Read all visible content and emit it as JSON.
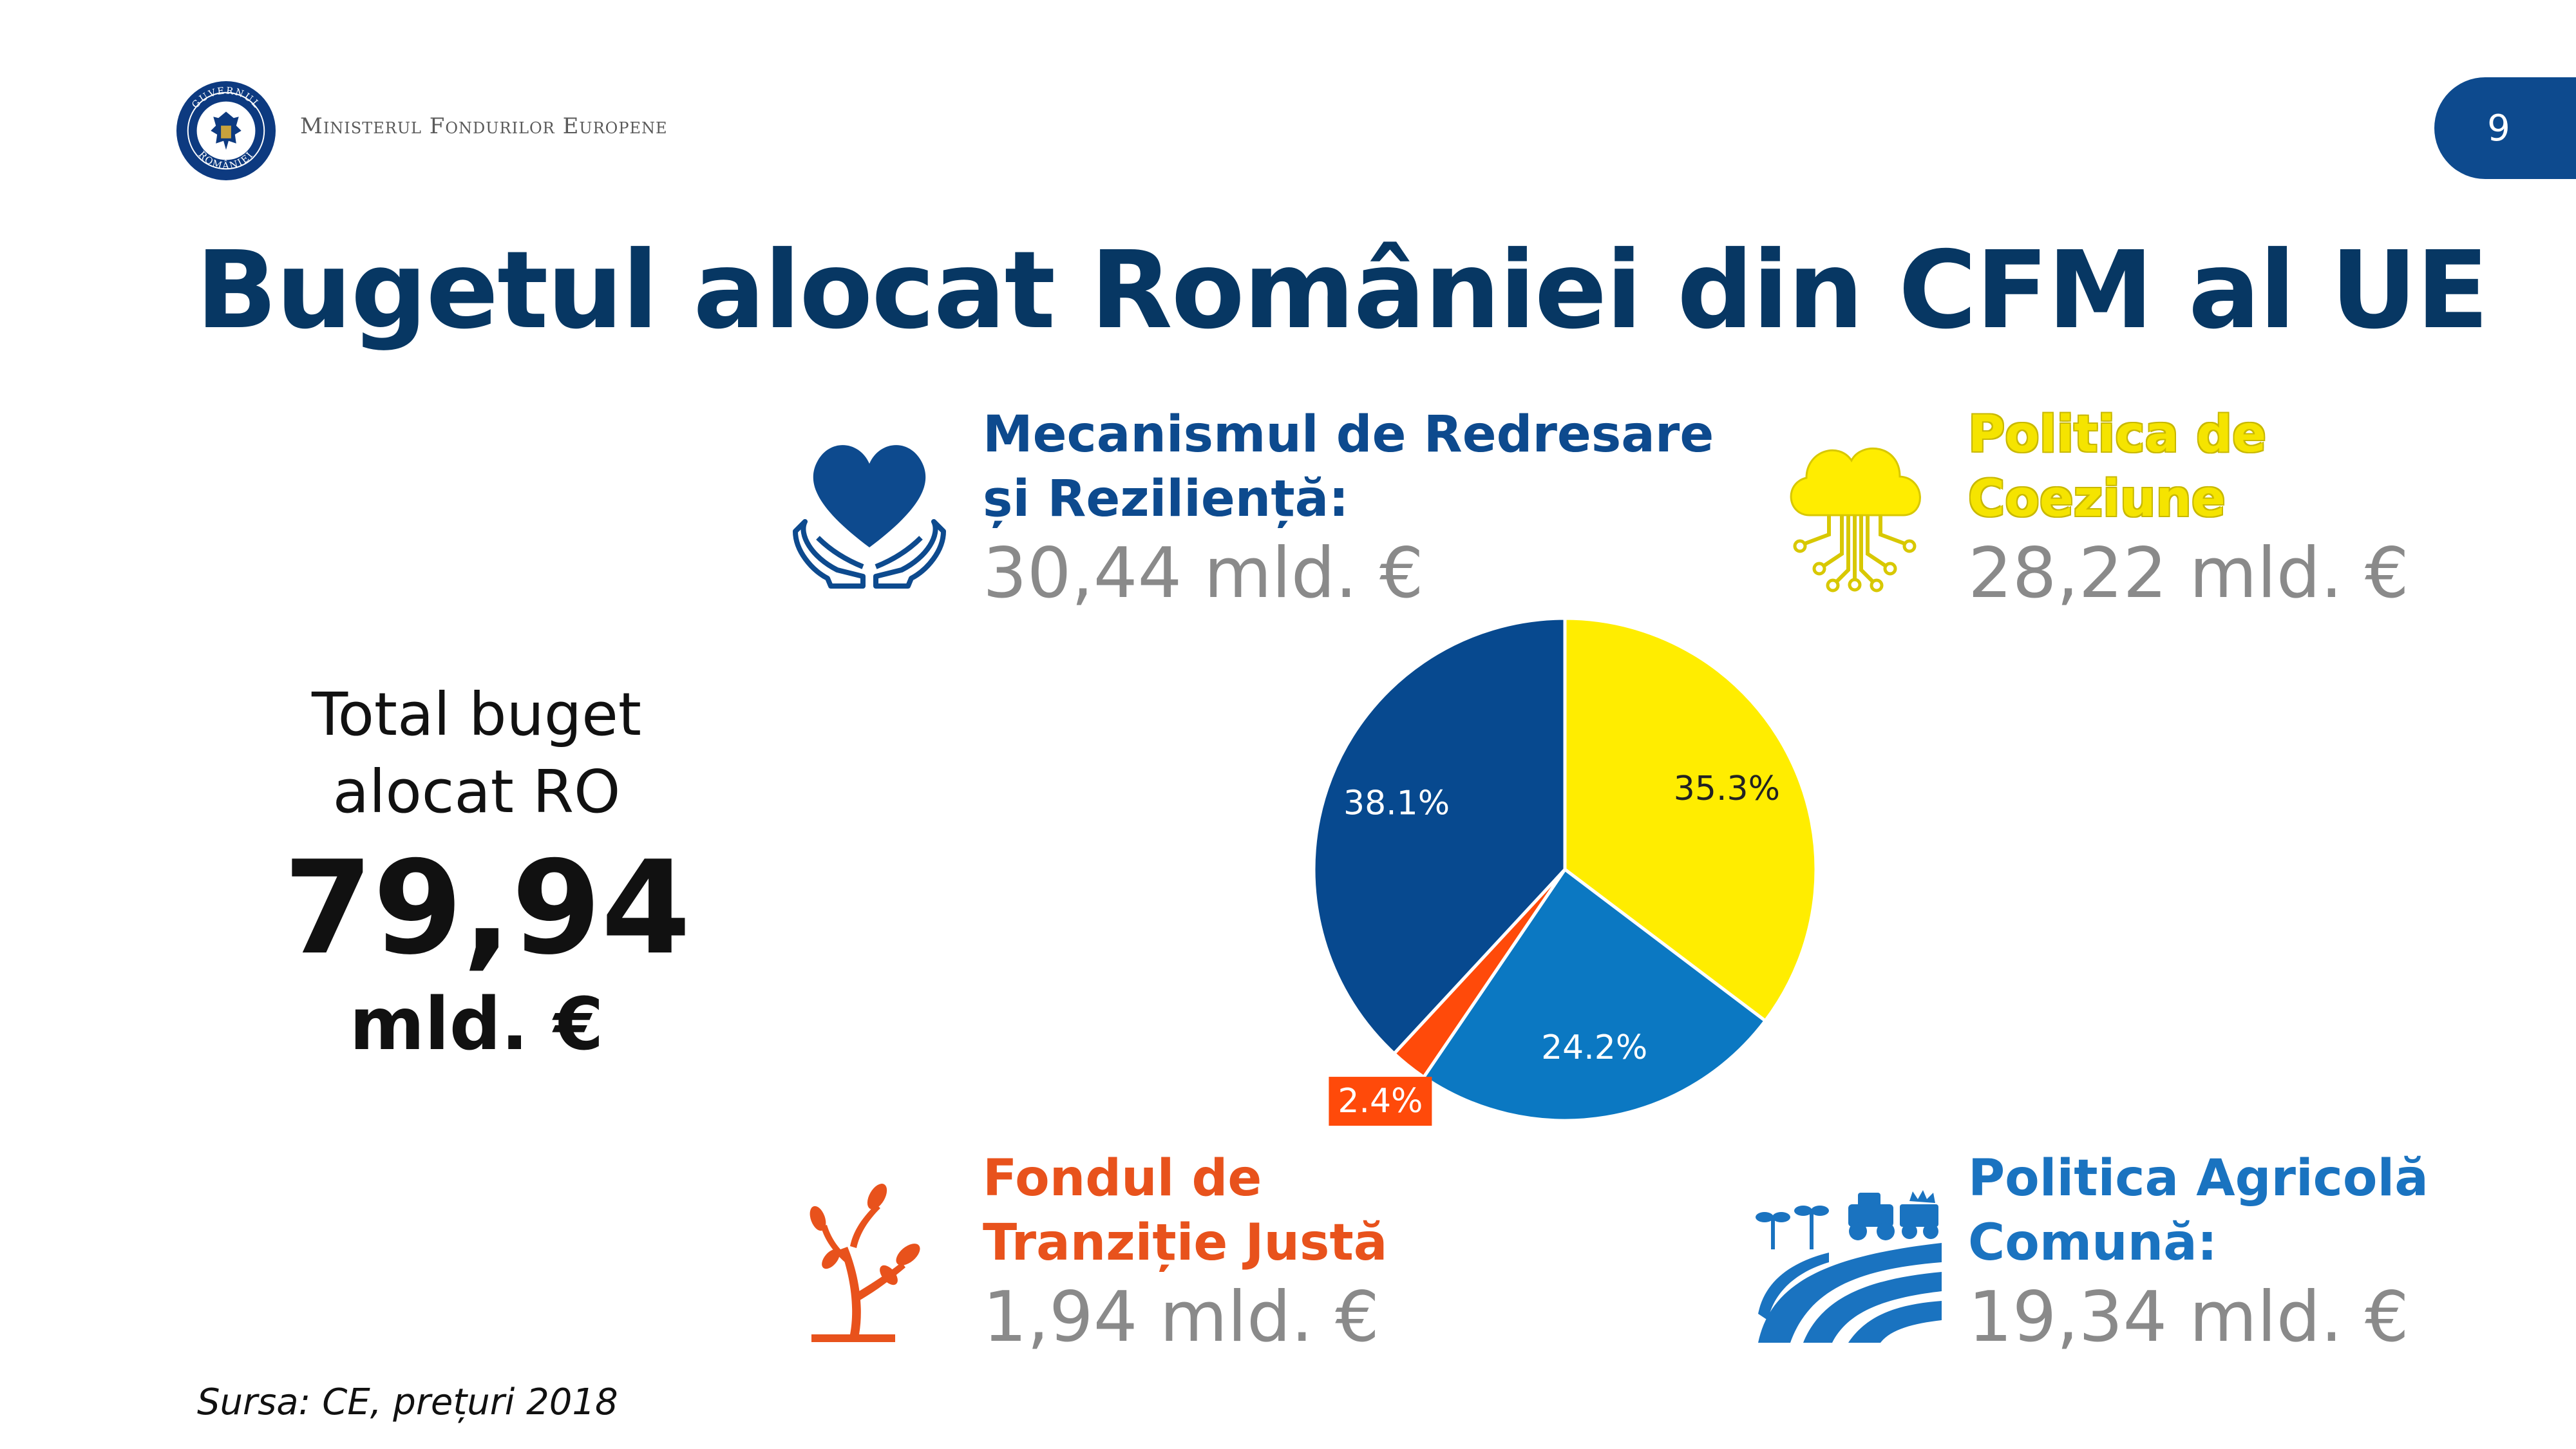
{
  "header": {
    "ministry_name": "Ministerul Fondurilor Europene",
    "logo_top_text": "GUVERNUL",
    "logo_bottom_text": "ROMÂNIEI",
    "page_number": "9"
  },
  "title": "Bugetul alocat României din CFM al UE",
  "total": {
    "label": "Total buget\nalocat RO",
    "value": "79,94",
    "unit": "mld. €"
  },
  "categories": [
    {
      "label": "Mecanismul de Redresare\nși Reziliență:",
      "amount": "30,44 mld. €",
      "icon": "heart-in-hands-icon"
    },
    {
      "label": "Politica de\nCoeziune",
      "amount": "28,22 mld. €",
      "icon": "cloud-circuit-icon"
    },
    {
      "label": "Fondul de\nTranziție Justă",
      "amount": "1,94 mld. €",
      "icon": "sprout-tree-icon"
    },
    {
      "label": "Politica Agricolă\nComună:",
      "amount": "19,34 mld. €",
      "icon": "tractor-field-icon"
    }
  ],
  "chart_data": {
    "type": "pie",
    "slices": [
      {
        "label": "35.3%",
        "value": 35.3,
        "color": "#ffed00",
        "text_color": "#222222"
      },
      {
        "label": "24.2%",
        "value": 24.2,
        "color": "#0b78c2",
        "text_color": "#ffffff"
      },
      {
        "label": "2.4%",
        "value": 2.4,
        "color": "#ff4a0a",
        "text_color": "#ffffff"
      },
      {
        "label": "38.1%",
        "value": 38.1,
        "color": "#07498f",
        "text_color": "#ffffff"
      }
    ]
  },
  "source": "Sursa: CE, prețuri 2018",
  "colors": {
    "title": "#073763",
    "accent_blue": "#0d4a8e",
    "accent_yellow": "#ffed00",
    "accent_orange": "#e8521c",
    "accent_light_blue": "#1a73c0"
  }
}
